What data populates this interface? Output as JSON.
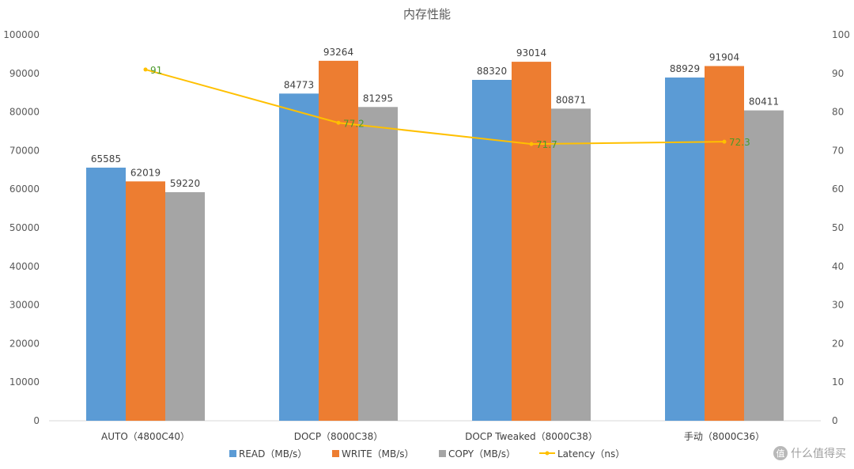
{
  "chart_data": {
    "type": "bar",
    "title": "内存性能",
    "categories": [
      "AUTO（4800C40）",
      "DOCP（8000C38）",
      "DOCP Tweaked（8000C38）",
      "手动（8000C36）"
    ],
    "series": [
      {
        "name": "READ（MB/s）",
        "type": "bar",
        "axis": "left",
        "color": "#5b9bd5",
        "values": [
          65585,
          84773,
          88320,
          88929
        ],
        "labels": [
          "65585",
          "84773",
          "88320",
          "88929"
        ]
      },
      {
        "name": "WRITE（MB/s）",
        "type": "bar",
        "axis": "left",
        "color": "#ed7d31",
        "values": [
          62019,
          93264,
          93014,
          91904
        ],
        "labels": [
          "62019",
          "93264",
          "93014",
          "91904"
        ]
      },
      {
        "name": "COPY（MB/s）",
        "type": "bar",
        "axis": "left",
        "color": "#a5a5a5",
        "values": [
          59220,
          81295,
          80871,
          80411
        ],
        "labels": [
          "59220",
          "81295",
          "80871",
          "80411"
        ]
      },
      {
        "name": "Latency（ns）",
        "type": "line",
        "axis": "right",
        "color": "#ffc000",
        "values": [
          91,
          77.2,
          71.7,
          72.3
        ],
        "labels": [
          "91",
          "77.2",
          "71.7",
          "72.3"
        ]
      }
    ],
    "y_left": {
      "min": 0,
      "max": 100000,
      "step": 10000,
      "ticks": [
        "0",
        "10000",
        "20000",
        "30000",
        "40000",
        "50000",
        "60000",
        "70000",
        "80000",
        "90000",
        "100000"
      ]
    },
    "y_right": {
      "min": 0,
      "max": 100,
      "step": 10,
      "ticks": [
        "0",
        "10",
        "20",
        "30",
        "40",
        "50",
        "60",
        "70",
        "80",
        "90",
        "100"
      ]
    },
    "grid": false,
    "legend": "bottom",
    "watermark": "什么值得买",
    "watermark_badge": "值"
  }
}
